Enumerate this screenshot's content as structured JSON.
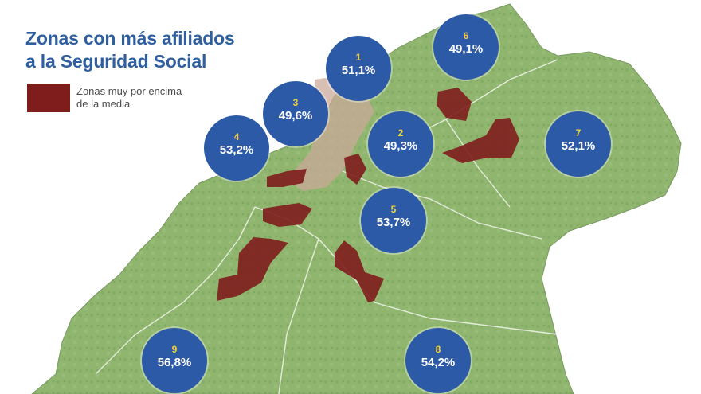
{
  "title": {
    "line1": "Zonas con más afiliados",
    "line2": "a la Seguridad Social"
  },
  "legend": {
    "label": "Zonas muy por encima de la media",
    "color": "#7f1d1d"
  },
  "colors": {
    "circle": "#2d5aa6",
    "number": "#f2d23a",
    "land": "#8fb56e",
    "urban": "#c9a99a"
  },
  "zones": [
    {
      "number": "1",
      "value": "51,1%"
    },
    {
      "number": "2",
      "value": "49,3%"
    },
    {
      "number": "3",
      "value": "49,6%"
    },
    {
      "number": "4",
      "value": "53,2%"
    },
    {
      "number": "5",
      "value": "53,7%"
    },
    {
      "number": "6",
      "value": "49,1%"
    },
    {
      "number": "7",
      "value": "52,1%"
    },
    {
      "number": "8",
      "value": "54,2%"
    },
    {
      "number": "9",
      "value": "56,8%"
    }
  ]
}
